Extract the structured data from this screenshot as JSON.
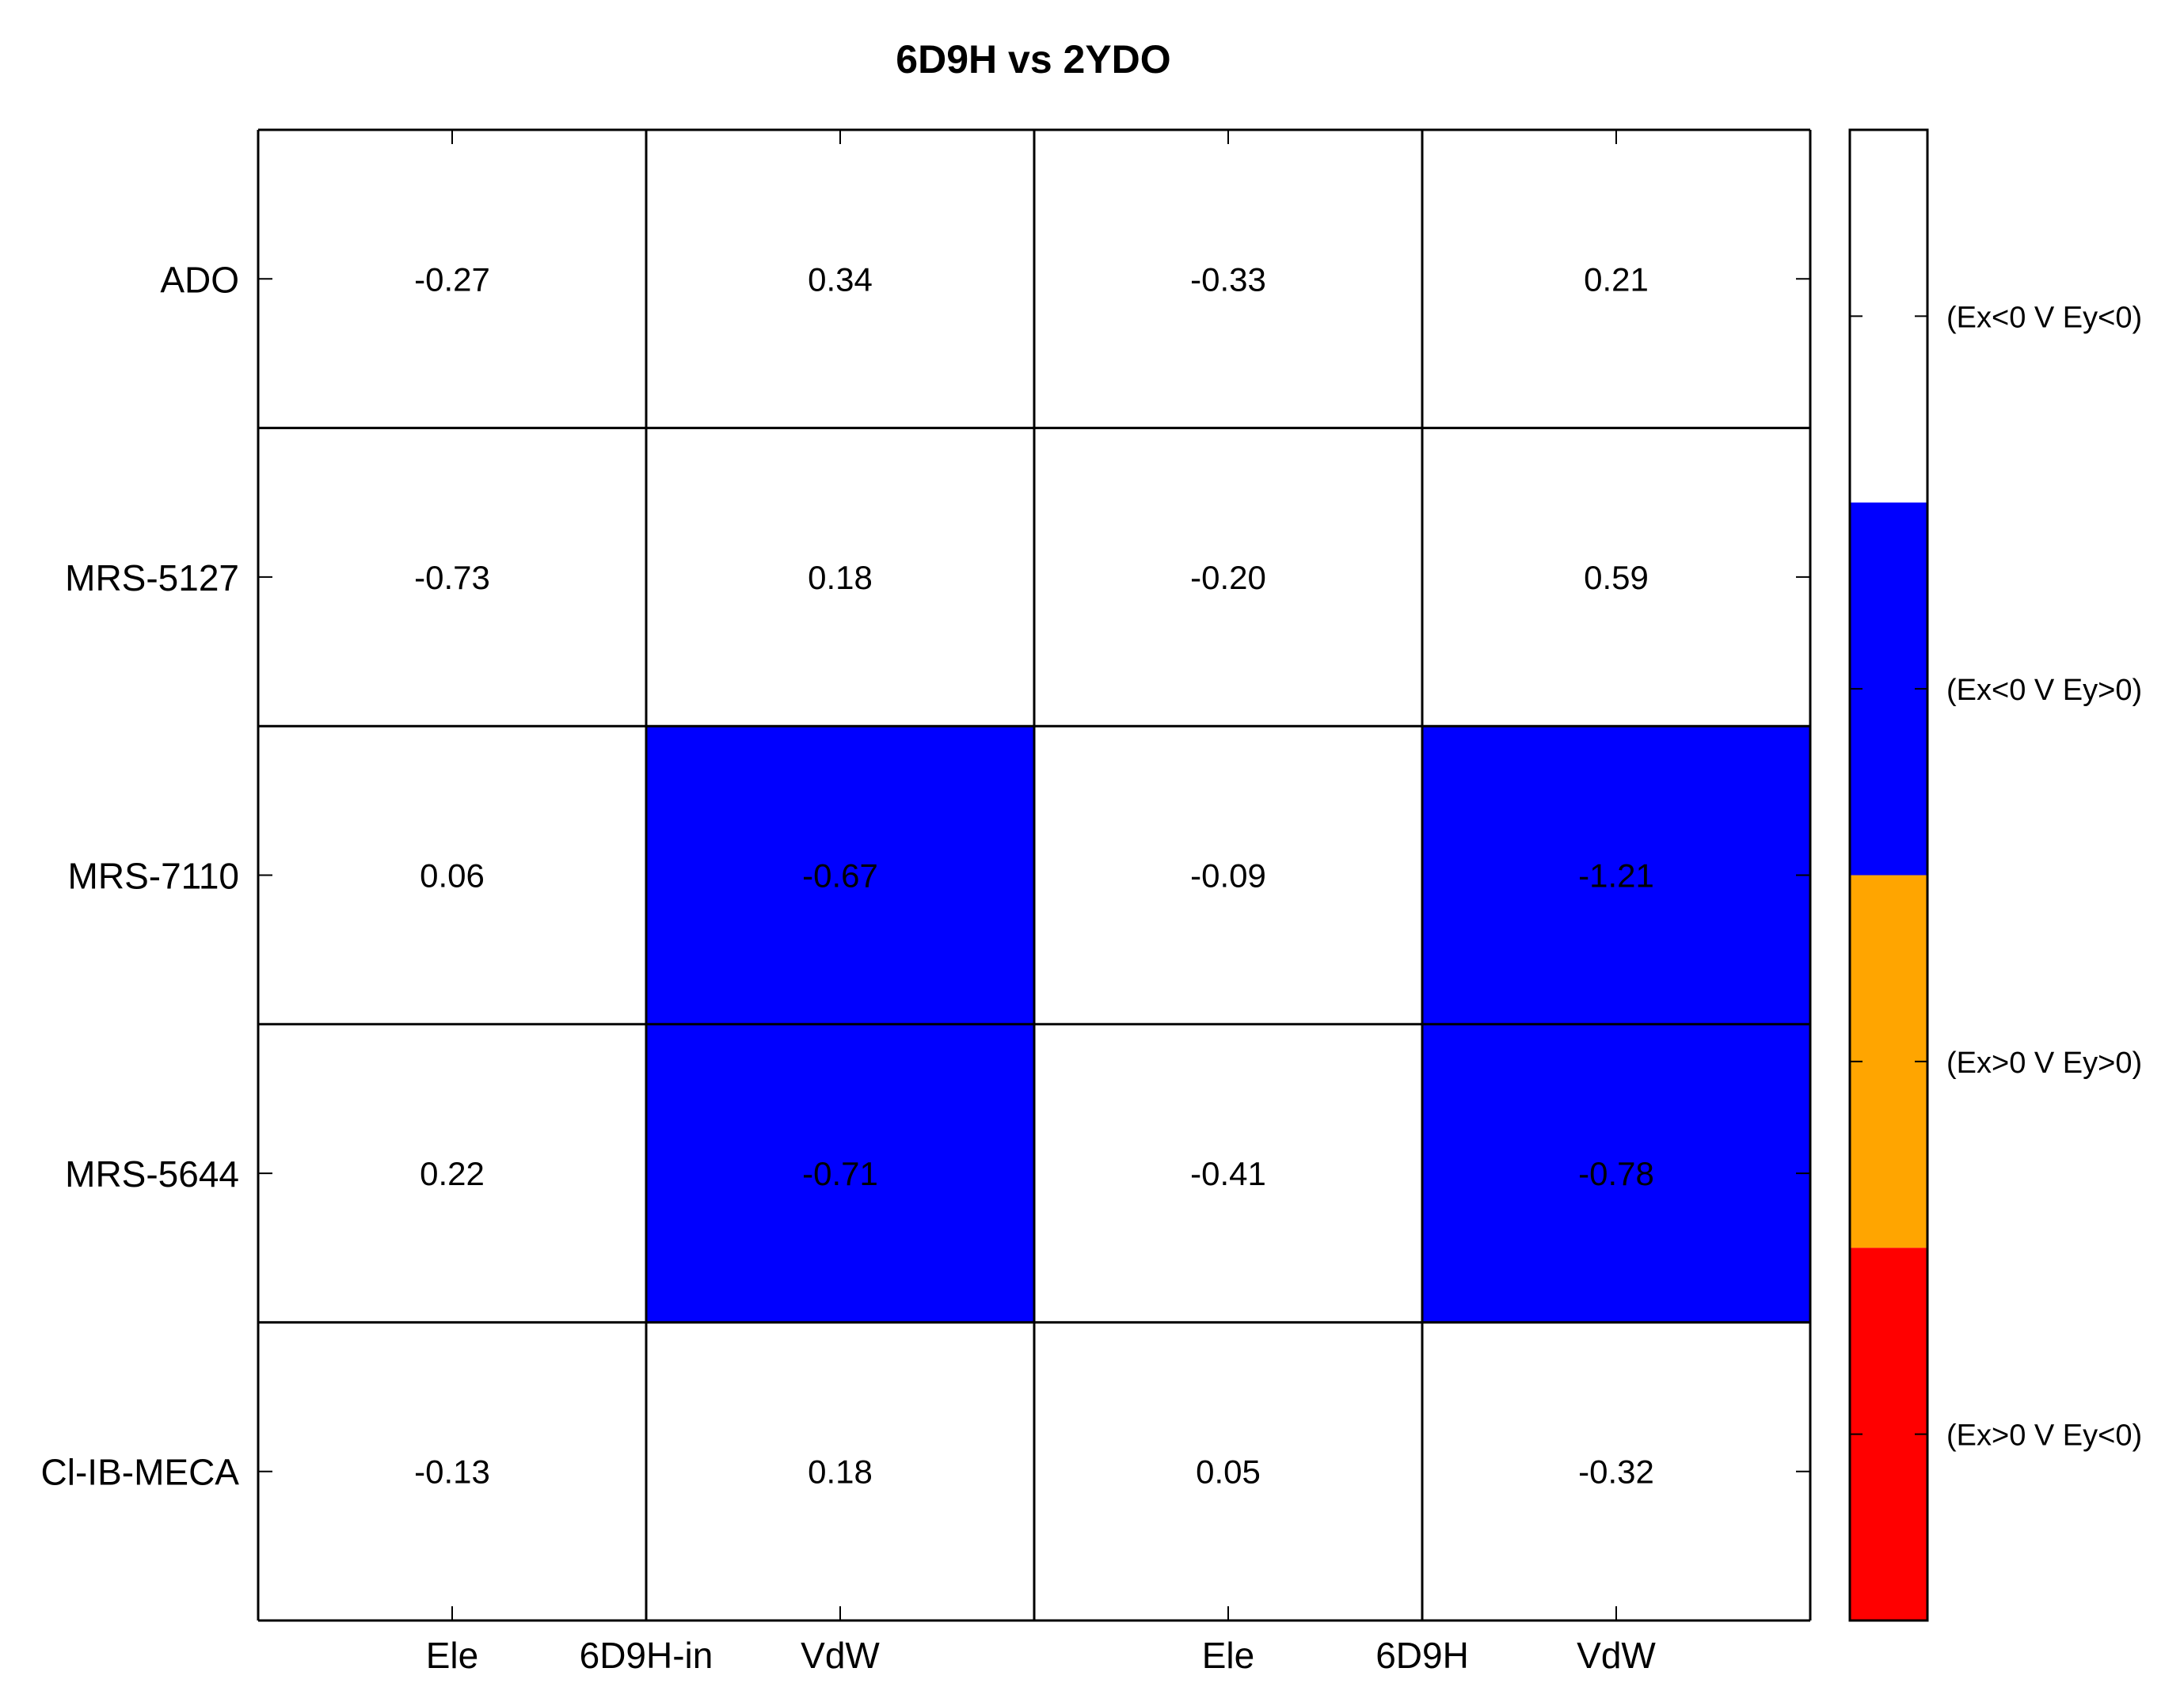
{
  "chart_data": {
    "type": "heatmap",
    "title": "6D9H vs 2YDO",
    "rows": [
      "ADO",
      "MRS-5127",
      "MRS-7110",
      "MRS-5644",
      "Cl-IB-MECA"
    ],
    "columns": [
      "Ele",
      "VdW",
      "Ele",
      "VdW"
    ],
    "column_groups": [
      {
        "label": "6D9H-in",
        "columns": [
          0,
          1
        ]
      },
      {
        "label": "6D9H",
        "columns": [
          2,
          3
        ]
      }
    ],
    "values": [
      [
        -0.27,
        0.34,
        -0.33,
        0.21
      ],
      [
        -0.73,
        0.18,
        -0.2,
        0.59
      ],
      [
        0.06,
        -0.67,
        -0.09,
        -1.21
      ],
      [
        0.22,
        -0.71,
        -0.41,
        -0.78
      ],
      [
        -0.13,
        0.18,
        0.05,
        -0.32
      ]
    ],
    "value_labels": [
      [
        "-0.27",
        "0.34",
        "-0.33",
        "0.21"
      ],
      [
        "-0.73",
        "0.18",
        "-0.20",
        "0.59"
      ],
      [
        "0.06",
        "-0.67",
        "-0.09",
        "-1.21"
      ],
      [
        "0.22",
        "-0.71",
        "-0.41",
        "-0.78"
      ],
      [
        "-0.13",
        "0.18",
        "0.05",
        "-0.32"
      ]
    ],
    "cell_category": [
      [
        0,
        0,
        0,
        0
      ],
      [
        0,
        0,
        0,
        0
      ],
      [
        0,
        1,
        0,
        1
      ],
      [
        0,
        1,
        0,
        1
      ],
      [
        0,
        0,
        0,
        0
      ]
    ],
    "legend": [
      {
        "label": "(Ex<0 V Ey<0)",
        "color": "#ffffff"
      },
      {
        "label": "(Ex<0 V Ey>0)",
        "color": "#0000ff"
      },
      {
        "label": "(Ex>0 V Ey>0)",
        "color": "#ffa500"
      },
      {
        "label": "(Ex>0 V Ey<0)",
        "color": "#ff0000"
      }
    ],
    "legend_placement": "right",
    "grid": true
  }
}
